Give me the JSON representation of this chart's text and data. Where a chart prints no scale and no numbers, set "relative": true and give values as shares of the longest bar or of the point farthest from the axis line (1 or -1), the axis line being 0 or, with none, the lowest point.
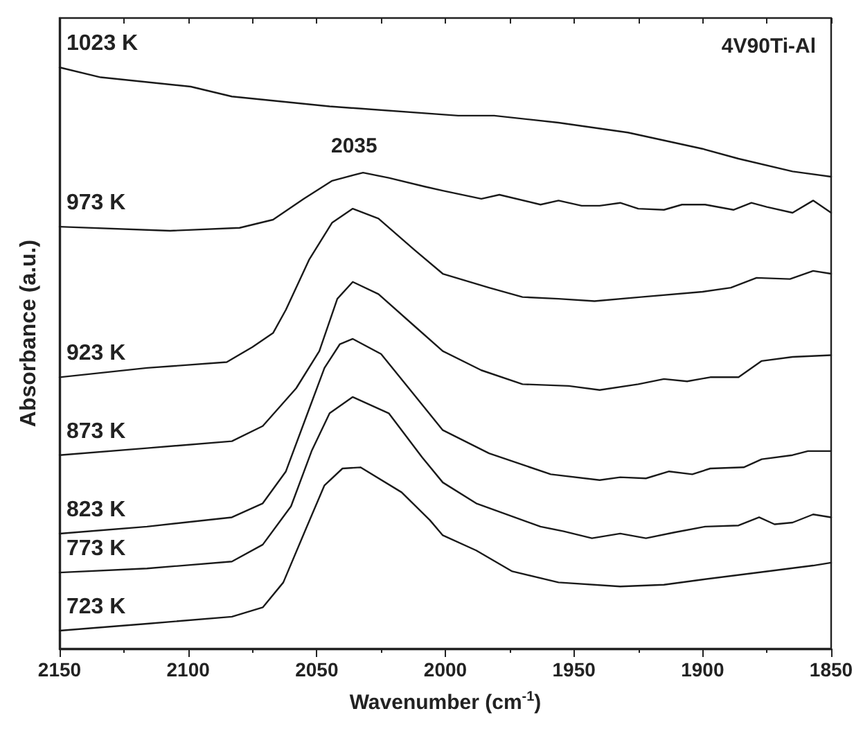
{
  "chart_data": {
    "type": "line",
    "relative": true,
    "xlabel": "Wavenumber (cm$^{-1}$)",
    "ylabel": "Absorbance (a.u.)",
    "xlim": [
      2150,
      1850
    ],
    "xticks": [
      2150,
      2100,
      2050,
      2000,
      1950,
      1900,
      1850
    ],
    "grid": false,
    "marker": "none",
    "line_style": "solid",
    "annotations": [
      "2035",
      "4V90Ti-Al"
    ],
    "series": [
      {
        "name": "1023 K",
        "color": "#1a1a1a",
        "x": [
          2150,
          2134,
          2099,
          2083,
          2045,
          1995,
          1981,
          1956,
          1929,
          1900,
          1886,
          1865,
          1850
        ],
        "values": [
          1.0,
          0.983,
          0.967,
          0.95,
          0.933,
          0.917,
          0.917,
          0.905,
          0.888,
          0.86,
          0.843,
          0.821,
          0.812
        ]
      },
      {
        "name": "973 K",
        "color": "#1a1a1a",
        "x": [
          2150,
          2107,
          2080,
          2067,
          2055,
          2044,
          2032,
          2022,
          2008,
          2001,
          1986,
          1979,
          1963,
          1956,
          1947,
          1940,
          1932,
          1925,
          1915,
          1908,
          1899,
          1888,
          1881,
          1875,
          1865,
          1857,
          1850
        ],
        "values": [
          0.726,
          0.719,
          0.724,
          0.738,
          0.774,
          0.805,
          0.819,
          0.81,
          0.795,
          0.788,
          0.774,
          0.781,
          0.764,
          0.771,
          0.762,
          0.762,
          0.767,
          0.757,
          0.755,
          0.764,
          0.764,
          0.755,
          0.767,
          0.76,
          0.75,
          0.771,
          0.75
        ]
      },
      {
        "name": "923 K",
        "color": "#1a1a1a",
        "x": [
          2150,
          2116,
          2085,
          2075,
          2067,
          2062,
          2053,
          2044,
          2036,
          2026,
          2012,
          2001,
          1983,
          1970,
          1956,
          1942,
          1924,
          1900,
          1889,
          1879,
          1866,
          1857,
          1850
        ],
        "values": [
          0.467,
          0.483,
          0.493,
          0.519,
          0.543,
          0.583,
          0.669,
          0.733,
          0.757,
          0.74,
          0.686,
          0.645,
          0.621,
          0.605,
          0.602,
          0.598,
          0.605,
          0.614,
          0.621,
          0.638,
          0.636,
          0.65,
          0.645
        ]
      },
      {
        "name": "873 K",
        "color": "#1a1a1a",
        "x": [
          2150,
          2116,
          2083,
          2071,
          2058,
          2049,
          2042,
          2036,
          2026,
          2012,
          2001,
          1986,
          1970,
          1952,
          1940,
          1925,
          1915,
          1906,
          1897,
          1886,
          1877,
          1865,
          1850
        ],
        "values": [
          0.333,
          0.345,
          0.357,
          0.383,
          0.448,
          0.512,
          0.602,
          0.631,
          0.61,
          0.555,
          0.512,
          0.479,
          0.455,
          0.452,
          0.445,
          0.455,
          0.464,
          0.46,
          0.467,
          0.467,
          0.495,
          0.502,
          0.505
        ]
      },
      {
        "name": "823 K",
        "color": "#1a1a1a",
        "x": [
          2150,
          2116,
          2083,
          2071,
          2062,
          2054,
          2047,
          2041,
          2036,
          2025,
          2012,
          2001,
          1983,
          1959,
          1940,
          1932,
          1922,
          1913,
          1904,
          1897,
          1884,
          1877,
          1865,
          1859,
          1850
        ],
        "values": [
          0.198,
          0.21,
          0.226,
          0.25,
          0.305,
          0.4,
          0.483,
          0.524,
          0.533,
          0.507,
          0.436,
          0.376,
          0.336,
          0.3,
          0.29,
          0.295,
          0.293,
          0.305,
          0.3,
          0.31,
          0.312,
          0.326,
          0.333,
          0.34,
          0.34
        ]
      },
      {
        "name": "773 K",
        "color": "#1a1a1a",
        "x": [
          2150,
          2116,
          2083,
          2071,
          2060,
          2052,
          2045,
          2036,
          2022,
          2009,
          2001,
          1988,
          1963,
          1954,
          1943,
          1932,
          1922,
          1911,
          1899,
          1886,
          1878,
          1872,
          1865,
          1857,
          1850
        ],
        "values": [
          0.131,
          0.138,
          0.15,
          0.179,
          0.245,
          0.34,
          0.405,
          0.433,
          0.405,
          0.329,
          0.286,
          0.25,
          0.21,
          0.202,
          0.19,
          0.198,
          0.19,
          0.2,
          0.21,
          0.212,
          0.226,
          0.214,
          0.217,
          0.231,
          0.226
        ]
      },
      {
        "name": "723 K",
        "color": "#1a1a1a",
        "x": [
          2150,
          2116,
          2083,
          2071,
          2063,
          2055,
          2047,
          2040,
          2033,
          2017,
          2006,
          2001,
          1988,
          1974,
          1956,
          1932,
          1915,
          1900,
          1875,
          1857,
          1850
        ],
        "values": [
          0.031,
          0.043,
          0.055,
          0.071,
          0.114,
          0.198,
          0.281,
          0.31,
          0.312,
          0.269,
          0.221,
          0.195,
          0.169,
          0.133,
          0.114,
          0.107,
          0.11,
          0.119,
          0.133,
          0.143,
          0.148
        ]
      }
    ]
  }
}
